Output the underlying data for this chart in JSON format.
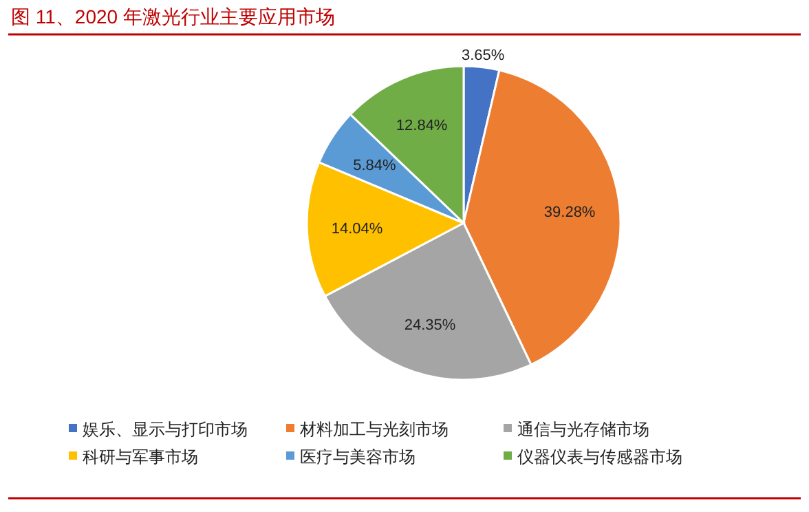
{
  "chart_data": {
    "type": "pie",
    "title": "图 11、2020 年激光行业主要应用市场",
    "categories": [
      "娱乐、显示与打印市场",
      "材料加工与光刻市场",
      "通信与光存储市场",
      "科研与军事市场",
      "医疗与美容市场",
      "仪器仪表与传感器市场"
    ],
    "values": [
      3.65,
      39.28,
      24.35,
      14.04,
      5.84,
      12.84
    ],
    "colors": [
      "#4472c4",
      "#ed7d31",
      "#a5a5a5",
      "#ffc000",
      "#5b9bd5",
      "#70ad47"
    ],
    "value_labels": [
      "3.65%",
      "39.28%",
      "24.35%",
      "14.04%",
      "5.84%",
      "12.84%"
    ],
    "legend": "bottom"
  }
}
